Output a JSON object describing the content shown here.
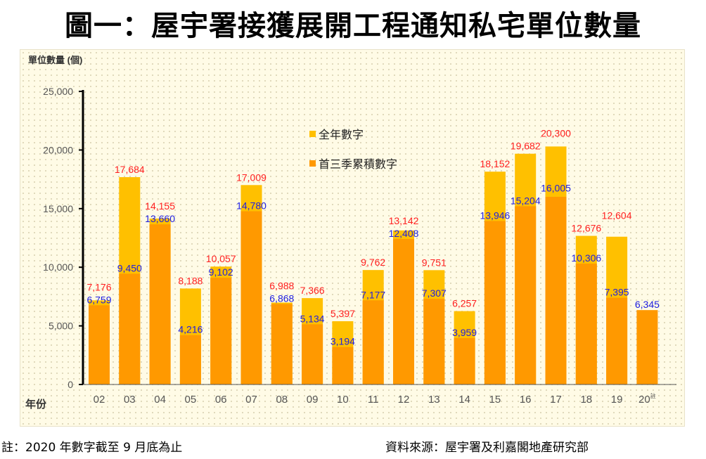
{
  "title": "圖一：屋宇署接獲展開工程通知私宅單位數量",
  "footnote": "註：2020 年數字截至 9 月底為止",
  "source": "資料來源：屋宇署及利嘉閣地產研究部",
  "colors": {
    "full_year": "#FFC000",
    "q3": "#FF9900",
    "full_label": "#FF2020",
    "q3_label": "#2020E0"
  },
  "chart_data": {
    "type": "bar",
    "ylabel": "單位數量 (個)",
    "xlabel": "年份",
    "ylim": [
      0,
      25000
    ],
    "yticks": [
      0,
      5000,
      10000,
      15000,
      20000,
      25000
    ],
    "ytick_labels": [
      "0",
      "5,000",
      "10,000",
      "15,000",
      "20,000",
      "25,000"
    ],
    "categories": [
      "02",
      "03",
      "04",
      "05",
      "06",
      "07",
      "08",
      "09",
      "10",
      "11",
      "12",
      "13",
      "14",
      "15",
      "16",
      "17",
      "18",
      "19",
      "20"
    ],
    "last_category_note": "註",
    "legend_position": "top-center",
    "series": [
      {
        "name": "全年數字",
        "values": [
          7176,
          17684,
          14155,
          8188,
          10057,
          17009,
          6988,
          7366,
          5397,
          9762,
          13142,
          9751,
          6257,
          18152,
          19682,
          20300,
          12676,
          12604,
          null
        ],
        "labels": [
          "7,176",
          "17,684",
          "14,155",
          "8,188",
          "10,057",
          "17,009",
          "6,988",
          "7,366",
          "5,397",
          "9,762",
          "13,142",
          "9,751",
          "6,257",
          "18,152",
          "19,682",
          "20,300",
          "12,676",
          "12,604",
          null
        ]
      },
      {
        "name": "首三季累積數字",
        "values": [
          6759,
          9450,
          13660,
          4216,
          9102,
          14780,
          6868,
          5134,
          3194,
          7177,
          12408,
          7307,
          3959,
          13946,
          15204,
          16005,
          10306,
          7395,
          6345
        ],
        "labels": [
          "6,759",
          "9,450",
          "13,660",
          "4,216",
          "9,102",
          "14,780",
          "6,868",
          "5,134",
          "3,194",
          "7,177",
          "12,408",
          "7,307",
          "3,959",
          "13,946",
          "15,204",
          "16,005",
          "10,306",
          "7,395",
          "6,345"
        ]
      }
    ]
  }
}
